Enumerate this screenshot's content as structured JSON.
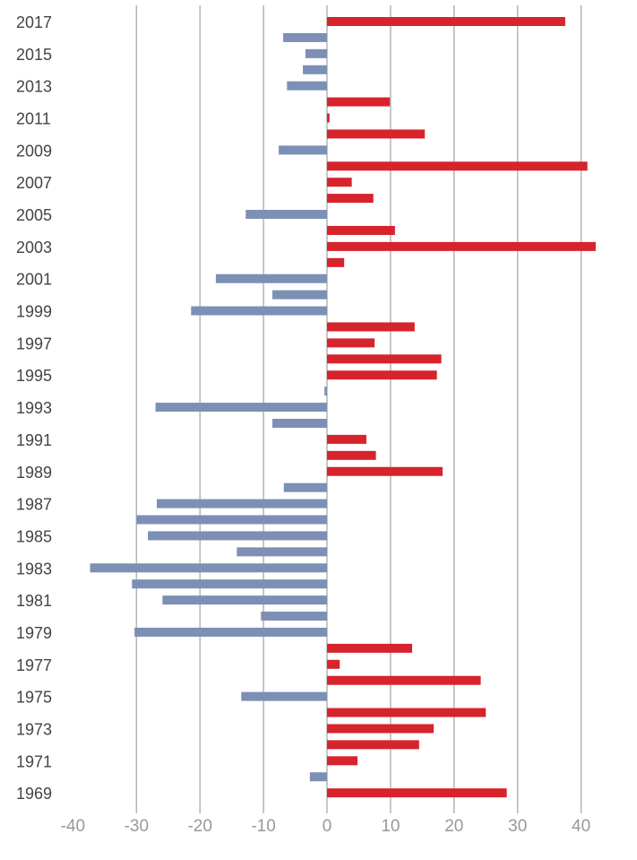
{
  "chart_data": {
    "type": "bar",
    "orientation": "horizontal",
    "title": "",
    "xlabel": "",
    "ylabel": "",
    "xlim": [
      -40,
      40
    ],
    "x_ticks": [
      "-40",
      "-30",
      "-20",
      "-10",
      "0",
      "10",
      "20",
      "30",
      "40"
    ],
    "grid": "vertical",
    "legend": "none",
    "colors": {
      "positive": "#d7232b",
      "negative": "#7d8fb5",
      "grid": "#b5b5b5"
    },
    "y_tick_labels": [
      "2017",
      "2015",
      "2013",
      "2011",
      "2009",
      "2007",
      "2005",
      "2003",
      "2001",
      "1999",
      "1997",
      "1995",
      "1993",
      "1991",
      "1989",
      "1987",
      "1985",
      "1983",
      "1981",
      "1979",
      "1977",
      "1975",
      "1973",
      "1971",
      "1969"
    ],
    "categories": [
      2017,
      2016,
      2015,
      2014,
      2013,
      2012,
      2011,
      2010,
      2009,
      2008,
      2007,
      2006,
      2005,
      2004,
      2003,
      2002,
      2001,
      2000,
      1999,
      1998,
      1997,
      1996,
      1995,
      1994,
      1993,
      1992,
      1991,
      1990,
      1989,
      1988,
      1987,
      1986,
      1985,
      1984,
      1983,
      1982,
      1981,
      1980,
      1979,
      1978,
      1977,
      1976,
      1975,
      1974,
      1973,
      1972,
      1971,
      1970,
      1969
    ],
    "values": [
      37.5,
      -6.9,
      -3.4,
      -3.8,
      -6.3,
      9.9,
      0.4,
      15.4,
      -7.6,
      41.0,
      3.9,
      7.3,
      -12.8,
      10.7,
      42.3,
      2.7,
      -17.5,
      -8.6,
      -21.4,
      13.8,
      7.5,
      18.0,
      17.3,
      -0.4,
      -27.0,
      -8.6,
      6.2,
      7.7,
      18.2,
      -6.8,
      -26.8,
      -30.0,
      -28.2,
      -14.2,
      -37.3,
      -30.7,
      -25.9,
      -10.4,
      -30.3,
      13.4,
      2.0,
      24.2,
      -13.5,
      25.0,
      16.8,
      14.5,
      4.8,
      -2.7,
      28.3
    ]
  }
}
